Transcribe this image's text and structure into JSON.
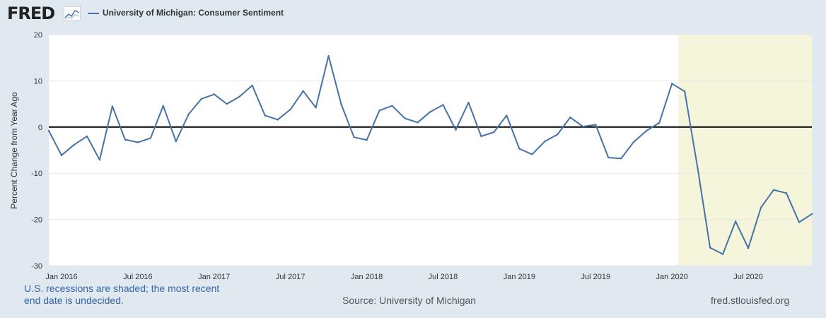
{
  "header": {
    "logo_text": "FRED",
    "logo_icon": "fred-chart-icon",
    "legend_label": "University of Michigan: Consumer Sentiment"
  },
  "footer": {
    "note": "U.S. recessions are shaded; the most recent end date is undecided.",
    "source": "Source: University of Michigan",
    "site": "fred.stlouisfed.org"
  },
  "colors": {
    "series": "#4572a7",
    "recession": "#f5f5dc",
    "background": "#e1e9f0",
    "plot": "#ffffff"
  },
  "chart_data": {
    "type": "line",
    "title": "",
    "xlabel": "",
    "ylabel": "Percent Change from Year Ago",
    "ylim": [
      -30,
      20
    ],
    "yticks": [
      -30,
      -20,
      -10,
      0,
      10,
      20
    ],
    "xlim": [
      "2015-12",
      "2020-12"
    ],
    "xticks": [
      {
        "date": "2016-01",
        "label": "Jan 2016"
      },
      {
        "date": "2016-07",
        "label": "Jul 2016"
      },
      {
        "date": "2017-01",
        "label": "Jan 2017"
      },
      {
        "date": "2017-07",
        "label": "Jul 2017"
      },
      {
        "date": "2018-01",
        "label": "Jan 2018"
      },
      {
        "date": "2018-07",
        "label": "Jul 2018"
      },
      {
        "date": "2019-01",
        "label": "Jan 2019"
      },
      {
        "date": "2019-07",
        "label": "Jul 2019"
      },
      {
        "date": "2020-01",
        "label": "Jan 2020"
      },
      {
        "date": "2020-07",
        "label": "Jul 2020"
      }
    ],
    "recessions": [
      {
        "start": "2020-02",
        "end": "2020-12"
      }
    ],
    "grid": true,
    "series": [
      {
        "name": "University of Michigan: Consumer Sentiment",
        "x": [
          "2015-12",
          "2016-01",
          "2016-02",
          "2016-03",
          "2016-04",
          "2016-05",
          "2016-06",
          "2016-07",
          "2016-08",
          "2016-09",
          "2016-10",
          "2016-11",
          "2016-12",
          "2017-01",
          "2017-02",
          "2017-03",
          "2017-04",
          "2017-05",
          "2017-06",
          "2017-07",
          "2017-08",
          "2017-09",
          "2017-10",
          "2017-11",
          "2017-12",
          "2018-01",
          "2018-02",
          "2018-03",
          "2018-04",
          "2018-05",
          "2018-06",
          "2018-07",
          "2018-08",
          "2018-09",
          "2018-10",
          "2018-11",
          "2018-12",
          "2019-01",
          "2019-02",
          "2019-03",
          "2019-04",
          "2019-05",
          "2019-06",
          "2019-07",
          "2019-08",
          "2019-09",
          "2019-10",
          "2019-11",
          "2019-12",
          "2020-01",
          "2020-02",
          "2020-03",
          "2020-04",
          "2020-05",
          "2020-06",
          "2020-07",
          "2020-08",
          "2020-09",
          "2020-10",
          "2020-11",
          "2020-12"
        ],
        "values": [
          -0.8,
          -6.1,
          -3.8,
          -2.0,
          -7.1,
          4.5,
          -2.7,
          -3.3,
          -2.4,
          4.6,
          -3.1,
          2.8,
          6.1,
          7.1,
          5.0,
          6.6,
          9.0,
          2.5,
          1.6,
          3.8,
          7.8,
          4.2,
          15.4,
          4.9,
          -2.2,
          -2.8,
          3.6,
          4.6,
          1.9,
          1.0,
          3.3,
          4.8,
          -0.6,
          5.3,
          -2.0,
          -1.1,
          2.5,
          -4.7,
          -5.9,
          -3.1,
          -1.6,
          2.1,
          0.1,
          0.5,
          -6.6,
          -6.8,
          -3.2,
          -0.8,
          0.9,
          9.4,
          7.7,
          -8.5,
          -26.1,
          -27.5,
          -20.4,
          -26.2,
          -17.4,
          -13.6,
          -14.3,
          -20.6,
          -18.8
        ]
      }
    ]
  }
}
